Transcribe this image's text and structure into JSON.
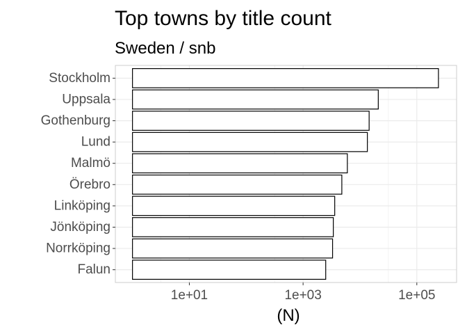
{
  "chart_data": {
    "type": "bar",
    "orientation": "horizontal",
    "title": "Top towns by title count",
    "subtitle": "Sweden / snb",
    "xlabel": "(N)",
    "ylabel": "",
    "x_scale": "log10",
    "xlim": [
      0.5,
      500000
    ],
    "x_ticks": [
      {
        "value": 10,
        "label": "1e+01"
      },
      {
        "value": 1000,
        "label": "1e+03"
      },
      {
        "value": 100000,
        "label": "1e+05"
      }
    ],
    "categories": [
      "Stockholm",
      "Uppsala",
      "Gothenburg",
      "Lund",
      "Malmö",
      "Örebro",
      "Linköping",
      "Jönköping",
      "Norrköping",
      "Falun"
    ],
    "values": [
      240000,
      21000,
      14500,
      13500,
      6000,
      4800,
      3600,
      3400,
      3300,
      2500
    ],
    "grid": true,
    "legend": "none",
    "bar_fill": "#ffffff",
    "bar_stroke": "#000000",
    "grid_color": "#ebebeb",
    "panel_border_color": "#cccccc"
  }
}
